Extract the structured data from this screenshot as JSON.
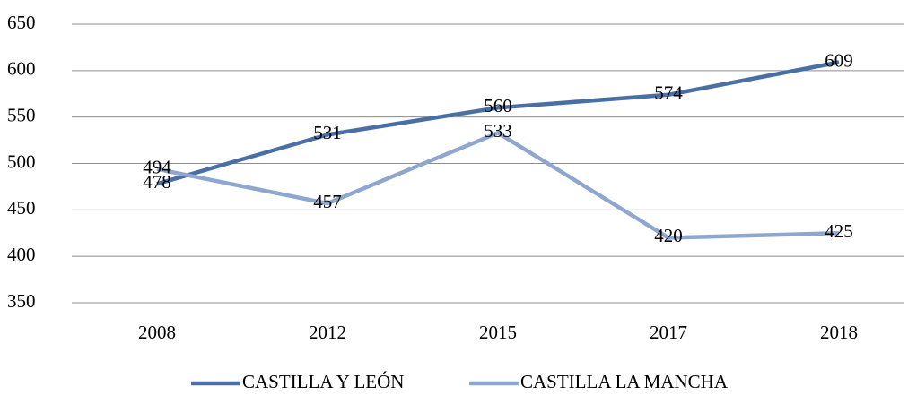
{
  "chart_data": {
    "type": "line",
    "categories": [
      "2008",
      "2012",
      "2015",
      "2017",
      "2018"
    ],
    "series": [
      {
        "name": "CASTILLA Y LEÓN",
        "color": "#4a6fa5",
        "values": [
          478,
          531,
          560,
          574,
          609
        ]
      },
      {
        "name": "CASTILLA LA MANCHA",
        "color": "#8fa7cf",
        "values": [
          494,
          457,
          533,
          420,
          425
        ]
      }
    ],
    "ylim": [
      350,
      650
    ],
    "yticks": [
      350,
      400,
      450,
      500,
      550,
      600,
      650
    ],
    "grid": true,
    "legend": "bottom"
  }
}
